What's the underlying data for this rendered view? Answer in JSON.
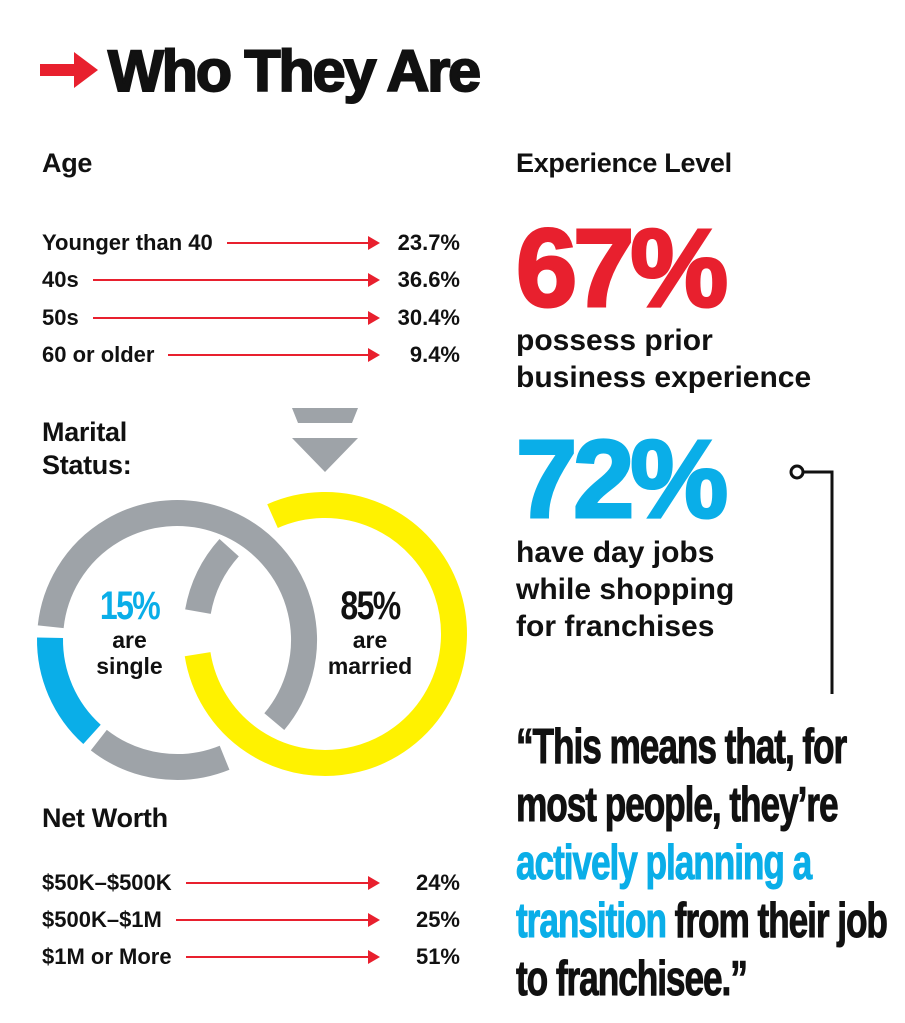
{
  "title": "Who They Are",
  "colors": {
    "red": "#e8202e",
    "blue": "#0aaee8",
    "yellow": "#fff200",
    "gray": "#9ea3a8"
  },
  "age": {
    "heading": "Age",
    "rows": [
      {
        "label": "Younger than 40",
        "value": "23.7%"
      },
      {
        "label": "40s",
        "value": "36.6%"
      },
      {
        "label": "50s",
        "value": "30.4%"
      },
      {
        "label": "60 or older",
        "value": "9.4%"
      }
    ]
  },
  "marital": {
    "heading_line1": "Marital",
    "heading_line2": "Status:",
    "single": {
      "pct": "15%",
      "line1": "are",
      "line2": "single",
      "value": 15
    },
    "married": {
      "pct": "85%",
      "line1": "are",
      "line2": "married",
      "value": 85
    }
  },
  "net_worth": {
    "heading": "Net Worth",
    "rows": [
      {
        "label": "$50K–$500K",
        "value": "24%"
      },
      {
        "label": "$500K–$1M",
        "value": "25%"
      },
      {
        "label": "$1M or More",
        "value": "51%"
      }
    ]
  },
  "experience": {
    "heading": "Experience Level",
    "stat1": {
      "pct": "67%",
      "line1": "possess prior",
      "line2": "business experience"
    },
    "stat2": {
      "pct": "72%",
      "line1": "have day jobs",
      "line2": "while shopping",
      "line3": "for franchises"
    }
  },
  "quote": {
    "part1": "“This means that, for most people, they’re ",
    "highlight": "actively planning a transition",
    "part2": " from their job to franchisee.”"
  }
}
